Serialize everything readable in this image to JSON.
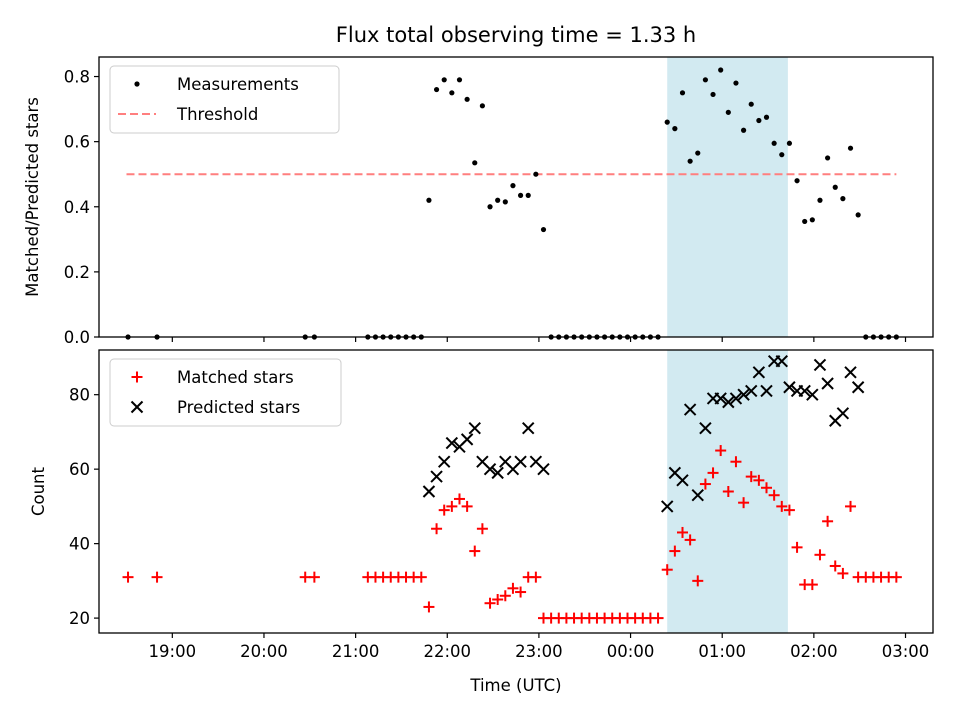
{
  "figure": {
    "title": "Flux total observing time = 1.33 h",
    "xlabel": "Time (UTC)"
  },
  "colors": {
    "measurement": "#000000",
    "threshold": "#ff7f7f",
    "matched": "#ff0000",
    "predicted": "#000000",
    "highlight": "#add8e6"
  },
  "chart_data": [
    {
      "type": "scatter",
      "ylabel": "Matched/Predicted stars",
      "ylim": [
        0,
        0.86
      ],
      "yticks": [
        0.0,
        0.2,
        0.4,
        0.6,
        0.8
      ],
      "ytick_labels": [
        "0.0",
        "0.2",
        "0.4",
        "0.6",
        "0.8"
      ],
      "xlim": [
        "18:12",
        "03:18"
      ],
      "xticks": [
        "19:00",
        "20:00",
        "21:00",
        "22:00",
        "23:00",
        "00:00",
        "01:00",
        "02:00",
        "03:00"
      ],
      "x_day_offset": 0,
      "highlight_span": [
        "00:24",
        "01:43"
      ],
      "legend": {
        "position": "upper-left",
        "entries": [
          "Measurements",
          "Threshold"
        ]
      },
      "threshold": {
        "name": "Threshold",
        "y": 0.5,
        "x": [
          "18:30",
          "02:54"
        ]
      },
      "series": [
        {
          "name": "Measurements",
          "marker": "dot",
          "points": [
            [
              "18:31",
              0
            ],
            [
              "18:50",
              0
            ],
            [
              "20:27",
              0
            ],
            [
              "20:33",
              0
            ],
            [
              "21:08",
              0
            ],
            [
              "21:13",
              0
            ],
            [
              "21:18",
              0
            ],
            [
              "21:23",
              0
            ],
            [
              "21:28",
              0
            ],
            [
              "21:33",
              0
            ],
            [
              "21:38",
              0
            ],
            [
              "21:43",
              0
            ],
            [
              "21:48",
              0.42
            ],
            [
              "21:53",
              0.76
            ],
            [
              "21:58",
              0.79
            ],
            [
              "22:03",
              0.75
            ],
            [
              "22:08",
              0.79
            ],
            [
              "22:13",
              0.73
            ],
            [
              "22:18",
              0.535
            ],
            [
              "22:23",
              0.71
            ],
            [
              "22:28",
              0.4
            ],
            [
              "22:33",
              0.42
            ],
            [
              "22:38",
              0.415
            ],
            [
              "22:43",
              0.465
            ],
            [
              "22:48",
              0.435
            ],
            [
              "22:53",
              0.435
            ],
            [
              "22:58",
              0.5
            ],
            [
              "23:03",
              0.33
            ],
            [
              "23:08",
              0
            ],
            [
              "23:13",
              0
            ],
            [
              "23:18",
              0
            ],
            [
              "23:23",
              0
            ],
            [
              "23:28",
              0
            ],
            [
              "23:33",
              0
            ],
            [
              "23:38",
              0
            ],
            [
              "23:43",
              0
            ],
            [
              "23:48",
              0
            ],
            [
              "23:53",
              0
            ],
            [
              "23:58",
              0
            ],
            [
              "00:03",
              0
            ],
            [
              "00:08",
              0
            ],
            [
              "00:13",
              0
            ],
            [
              "00:18",
              0
            ],
            [
              "00:24",
              0.66
            ],
            [
              "00:29",
              0.64
            ],
            [
              "00:34",
              0.75
            ],
            [
              "00:39",
              0.54
            ],
            [
              "00:44",
              0.565
            ],
            [
              "00:49",
              0.79
            ],
            [
              "00:54",
              0.745
            ],
            [
              "00:59",
              0.82
            ],
            [
              "01:04",
              0.69
            ],
            [
              "01:09",
              0.78
            ],
            [
              "01:14",
              0.635
            ],
            [
              "01:19",
              0.715
            ],
            [
              "01:24",
              0.665
            ],
            [
              "01:29",
              0.675
            ],
            [
              "01:34",
              0.595
            ],
            [
              "01:39",
              0.56
            ],
            [
              "01:44",
              0.595
            ],
            [
              "01:49",
              0.48
            ],
            [
              "01:54",
              0.355
            ],
            [
              "01:59",
              0.36
            ],
            [
              "02:04",
              0.42
            ],
            [
              "02:09",
              0.55
            ],
            [
              "02:14",
              0.46
            ],
            [
              "02:19",
              0.425
            ],
            [
              "02:24",
              0.58
            ],
            [
              "02:29",
              0.375
            ],
            [
              "02:34",
              0
            ],
            [
              "02:39",
              0
            ],
            [
              "02:44",
              0
            ],
            [
              "02:49",
              0
            ],
            [
              "02:54",
              0
            ]
          ]
        }
      ]
    },
    {
      "type": "scatter",
      "ylabel": "Count",
      "ylim": [
        16,
        92
      ],
      "yticks": [
        20,
        40,
        60,
        80
      ],
      "ytick_labels": [
        "20",
        "40",
        "60",
        "80"
      ],
      "xlim": [
        "18:12",
        "03:18"
      ],
      "xticks": [
        "19:00",
        "20:00",
        "21:00",
        "22:00",
        "23:00",
        "00:00",
        "01:00",
        "02:00",
        "03:00"
      ],
      "highlight_span": [
        "00:24",
        "01:43"
      ],
      "legend": {
        "position": "upper-left",
        "entries": [
          "Matched stars",
          "Predicted stars"
        ]
      },
      "series": [
        {
          "name": "Matched stars",
          "marker": "plus",
          "points": [
            [
              "18:31",
              31
            ],
            [
              "18:50",
              31
            ],
            [
              "20:27",
              31
            ],
            [
              "20:33",
              31
            ],
            [
              "21:08",
              31
            ],
            [
              "21:13",
              31
            ],
            [
              "21:18",
              31
            ],
            [
              "21:23",
              31
            ],
            [
              "21:28",
              31
            ],
            [
              "21:33",
              31
            ],
            [
              "21:38",
              31
            ],
            [
              "21:43",
              31
            ],
            [
              "21:48",
              23
            ],
            [
              "21:53",
              44
            ],
            [
              "21:58",
              49
            ],
            [
              "22:03",
              50
            ],
            [
              "22:08",
              52
            ],
            [
              "22:13",
              50
            ],
            [
              "22:18",
              38
            ],
            [
              "22:23",
              44
            ],
            [
              "22:28",
              24
            ],
            [
              "22:33",
              25
            ],
            [
              "22:38",
              26
            ],
            [
              "22:43",
              28
            ],
            [
              "22:48",
              27
            ],
            [
              "22:53",
              31
            ],
            [
              "22:58",
              31
            ],
            [
              "23:03",
              20
            ],
            [
              "23:08",
              20
            ],
            [
              "23:13",
              20
            ],
            [
              "23:18",
              20
            ],
            [
              "23:23",
              20
            ],
            [
              "23:28",
              20
            ],
            [
              "23:33",
              20
            ],
            [
              "23:38",
              20
            ],
            [
              "23:43",
              20
            ],
            [
              "23:48",
              20
            ],
            [
              "23:53",
              20
            ],
            [
              "23:58",
              20
            ],
            [
              "00:03",
              20
            ],
            [
              "00:08",
              20
            ],
            [
              "00:13",
              20
            ],
            [
              "00:18",
              20
            ],
            [
              "00:24",
              33
            ],
            [
              "00:29",
              38
            ],
            [
              "00:34",
              43
            ],
            [
              "00:39",
              41
            ],
            [
              "00:44",
              30
            ],
            [
              "00:49",
              56
            ],
            [
              "00:54",
              59
            ],
            [
              "00:59",
              65
            ],
            [
              "01:04",
              54
            ],
            [
              "01:09",
              62
            ],
            [
              "01:14",
              51
            ],
            [
              "01:19",
              58
            ],
            [
              "01:24",
              57
            ],
            [
              "01:29",
              55
            ],
            [
              "01:34",
              53
            ],
            [
              "01:39",
              50
            ],
            [
              "01:44",
              49
            ],
            [
              "01:49",
              39
            ],
            [
              "01:54",
              29
            ],
            [
              "01:59",
              29
            ],
            [
              "02:04",
              37
            ],
            [
              "02:09",
              46
            ],
            [
              "02:14",
              34
            ],
            [
              "02:19",
              32
            ],
            [
              "02:24",
              50
            ],
            [
              "02:29",
              31
            ],
            [
              "02:34",
              31
            ],
            [
              "02:39",
              31
            ],
            [
              "02:44",
              31
            ],
            [
              "02:49",
              31
            ],
            [
              "02:54",
              31
            ]
          ]
        },
        {
          "name": "Predicted stars",
          "marker": "x",
          "points": [
            [
              "21:48",
              54
            ],
            [
              "21:53",
              58
            ],
            [
              "21:58",
              62
            ],
            [
              "22:03",
              67
            ],
            [
              "22:08",
              66
            ],
            [
              "22:13",
              68
            ],
            [
              "22:18",
              71
            ],
            [
              "22:23",
              62
            ],
            [
              "22:28",
              60
            ],
            [
              "22:33",
              59
            ],
            [
              "22:38",
              62
            ],
            [
              "22:43",
              60
            ],
            [
              "22:48",
              62
            ],
            [
              "22:53",
              71
            ],
            [
              "22:58",
              62
            ],
            [
              "23:03",
              60
            ],
            [
              "00:24",
              50
            ],
            [
              "00:29",
              59
            ],
            [
              "00:34",
              57
            ],
            [
              "00:39",
              76
            ],
            [
              "00:44",
              53
            ],
            [
              "00:49",
              71
            ],
            [
              "00:54",
              79
            ],
            [
              "00:59",
              79
            ],
            [
              "01:04",
              78
            ],
            [
              "01:09",
              79
            ],
            [
              "01:14",
              80
            ],
            [
              "01:19",
              81
            ],
            [
              "01:24",
              86
            ],
            [
              "01:29",
              81
            ],
            [
              "01:34",
              89
            ],
            [
              "01:39",
              89
            ],
            [
              "01:44",
              82
            ],
            [
              "01:49",
              81
            ],
            [
              "01:54",
              81
            ],
            [
              "01:59",
              80
            ],
            [
              "02:04",
              88
            ],
            [
              "02:09",
              83
            ],
            [
              "02:14",
              73
            ],
            [
              "02:19",
              75
            ],
            [
              "02:24",
              86
            ],
            [
              "02:29",
              82
            ]
          ]
        }
      ]
    }
  ]
}
